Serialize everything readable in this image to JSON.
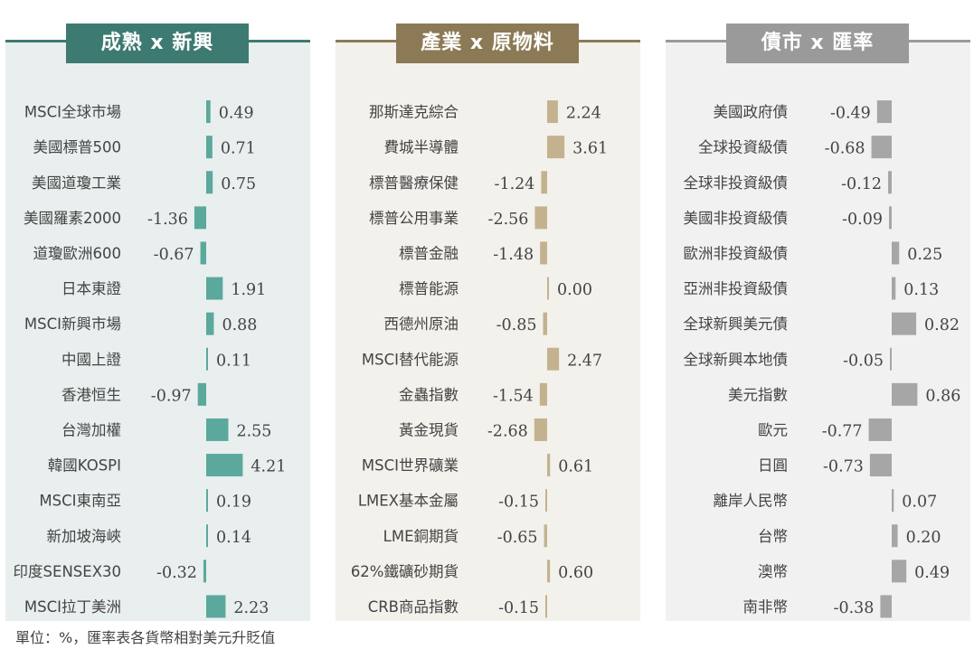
{
  "footnote": "單位：%，匯率表各貨幣相對美元升貶值",
  "colors": {
    "panel1_bg": "#e8efee",
    "panel1_accent": "#3d7a72",
    "panel1_bar": "#5ba99c",
    "panel2_bg": "#f3f1ec",
    "panel2_accent": "#8b7a55",
    "panel2_bar": "#c4b28f",
    "panel3_bg": "#f1f1f1",
    "panel3_accent": "#9a9a9a",
    "panel3_bar": "#a6a6a6"
  },
  "chart_data": [
    {
      "type": "bar",
      "title": "成熟 x 新興",
      "categories": [
        "MSCI全球市場",
        "美國標普500",
        "美國道瓊工業",
        "美國羅素2000",
        "道瓊歐洲600",
        "日本東證",
        "MSCI新興市場",
        "中國上證",
        "香港恒生",
        "台灣加權",
        "韓國KOSPI",
        "MSCI東南亞",
        "新加坡海峽",
        "印度SENSEX30",
        "MSCI拉丁美洲"
      ],
      "values": [
        0.49,
        0.71,
        0.75,
        -1.36,
        -0.67,
        1.91,
        0.88,
        0.11,
        -0.97,
        2.55,
        4.21,
        0.19,
        0.14,
        -0.32,
        2.23
      ],
      "labels": [
        "0.49",
        "0.71",
        "0.75",
        "-1.36",
        "-0.67",
        "1.91",
        "0.88",
        "0.11",
        "-0.97",
        "2.55",
        "4.21",
        "0.19",
        "0.14",
        "-0.32",
        "2.23"
      ],
      "orientation": "horizontal"
    },
    {
      "type": "bar",
      "title": "產業 x 原物料",
      "categories": [
        "那斯達克綜合",
        "費城半導體",
        "標普醫療保健",
        "標普公用事業",
        "標普金融",
        "標普能源",
        "西德州原油",
        "MSCI替代能源",
        "金蟲指數",
        "黃金現貨",
        "MSCI世界礦業",
        "LMEX基本金屬",
        "LME銅期貨",
        "62%鐵礦砂期貨",
        "CRB商品指數"
      ],
      "values": [
        2.24,
        3.61,
        -1.24,
        -2.56,
        -1.48,
        0.0,
        -0.85,
        2.47,
        -1.54,
        -2.68,
        0.61,
        -0.15,
        -0.65,
        0.6,
        -0.15
      ],
      "labels": [
        "2.24",
        "3.61",
        "-1.24",
        "-2.56",
        "-1.48",
        "0.00",
        "-0.85",
        "2.47",
        "-1.54",
        "-2.68",
        "0.61",
        "-0.15",
        "-0.65",
        "0.60",
        "-0.15"
      ],
      "orientation": "horizontal"
    },
    {
      "type": "bar",
      "title": "債市 x 匯率",
      "categories": [
        "美國政府債",
        "全球投資級債",
        "全球非投資級債",
        "美國非投資級債",
        "歐洲非投資級債",
        "亞洲非投資級債",
        "全球新興美元債",
        "全球新興本地債",
        "美元指數",
        "歐元",
        "日圓",
        "離岸人民幣",
        "台幣",
        "澳幣",
        "南非幣"
      ],
      "values": [
        -0.49,
        -0.68,
        -0.12,
        -0.09,
        0.25,
        0.13,
        0.82,
        -0.05,
        0.86,
        -0.77,
        -0.73,
        0.07,
        0.2,
        0.49,
        -0.38
      ],
      "labels": [
        "-0.49",
        "-0.68",
        "-0.12",
        "-0.09",
        "0.25",
        "0.13",
        "0.82",
        "-0.05",
        "0.86",
        "-0.77",
        "-0.73",
        "0.07",
        "0.20",
        "0.49",
        "-0.38"
      ],
      "orientation": "horizontal"
    }
  ]
}
